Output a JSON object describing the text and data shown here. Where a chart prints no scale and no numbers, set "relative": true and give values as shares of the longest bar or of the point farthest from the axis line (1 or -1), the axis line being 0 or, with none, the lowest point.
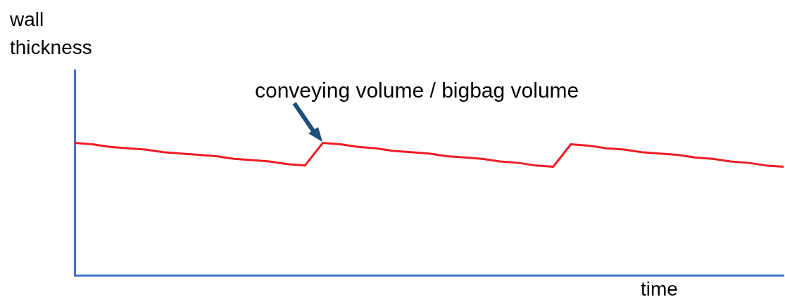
{
  "chart_data": {
    "type": "line",
    "relative": true,
    "xlabel": "time",
    "ylabel": "wall thickness",
    "categories": [
      null,
      null,
      null,
      null,
      null,
      null,
      null,
      null,
      null,
      null,
      null,
      null,
      null,
      null,
      null,
      null,
      null,
      null,
      null,
      null,
      null,
      null,
      null,
      null,
      null,
      null,
      null,
      null,
      null,
      null,
      null,
      null,
      null,
      null,
      null,
      null,
      null,
      null,
      null,
      null,
      null
    ],
    "marker": "none",
    "line_style": "solid",
    "series": [
      {
        "color": "#ee1c25",
        "values": [
          1,
          0.99,
          0.97,
          0.96,
          0.95,
          0.93,
          0.92,
          0.91,
          0.9,
          0.88,
          0.87,
          0.86,
          0.84,
          0.83,
          1,
          0.99,
          0.97,
          0.96,
          0.94,
          0.93,
          0.92,
          0.9,
          0.89,
          0.88,
          0.86,
          0.85,
          0.83,
          0.82,
          0.99,
          0.98,
          0.96,
          0.95,
          0.93,
          0.92,
          0.91,
          0.89,
          0.88,
          0.86,
          0.85,
          0.83,
          0.82
        ]
      }
    ],
    "annotations": [
      "conveying volume / bigbag volume"
    ]
  }
}
